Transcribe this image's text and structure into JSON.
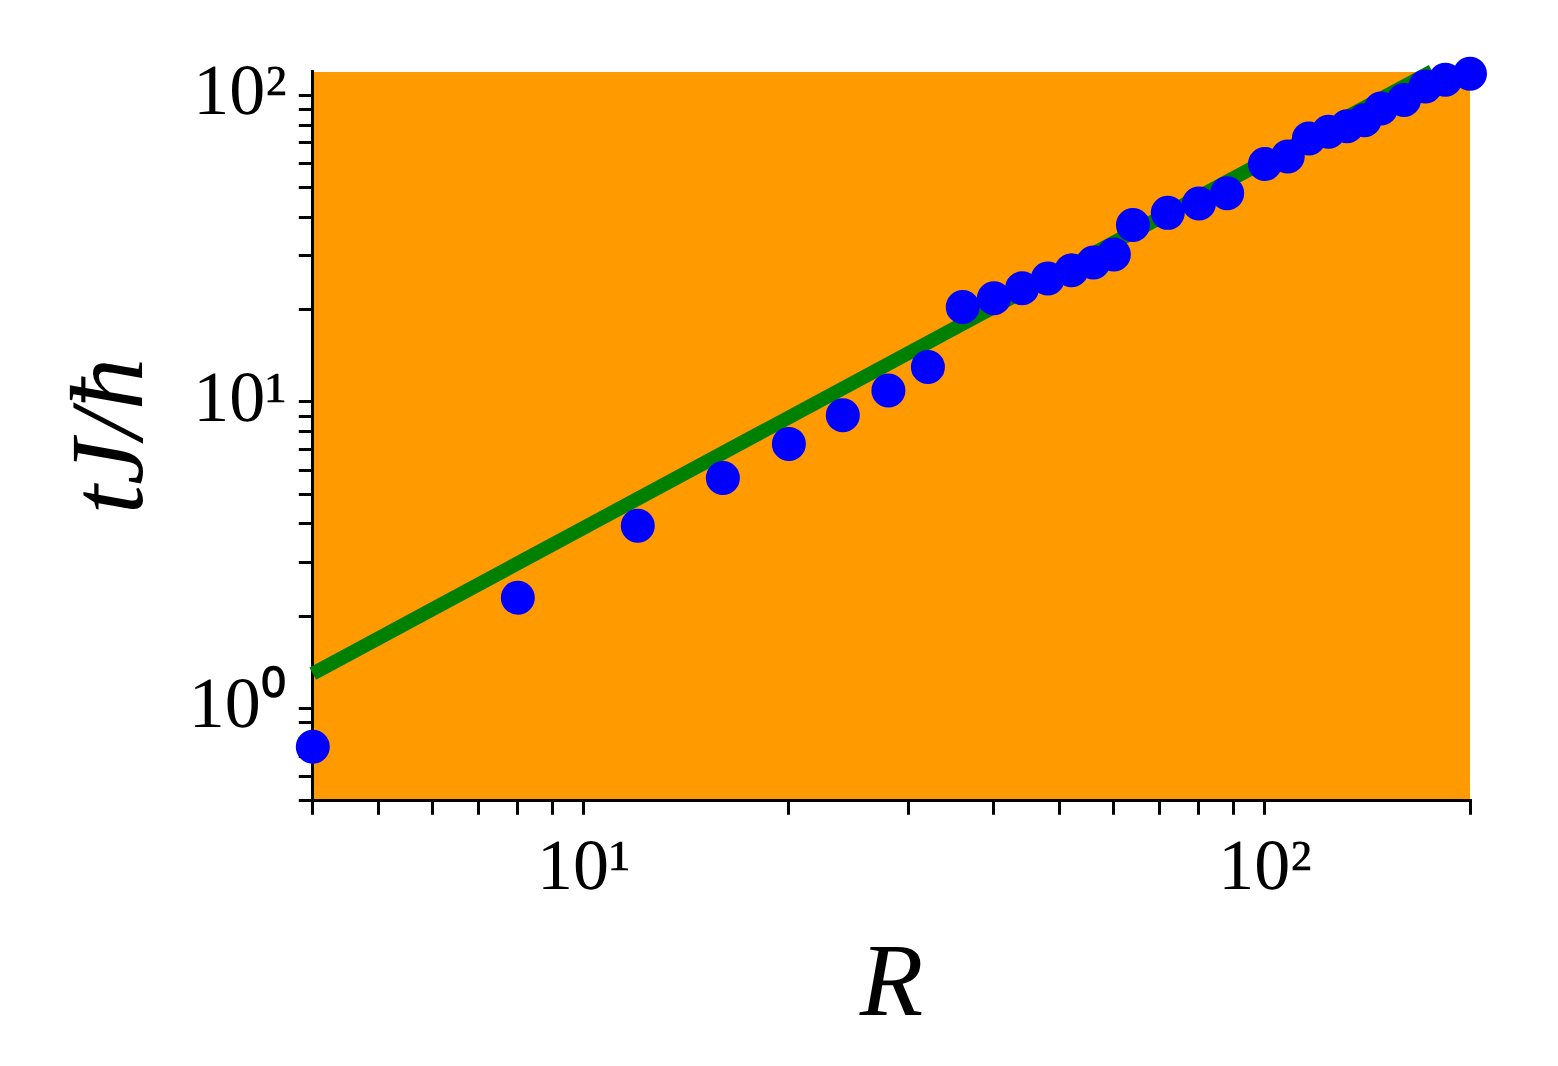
{
  "chart_data": {
    "type": "scatter",
    "xlabel": "R",
    "ylabel": "tJ/ħ",
    "log": "xy",
    "xlim": [
      4,
      200
    ],
    "ylim": [
      0.5,
      120
    ],
    "xticks": [
      {
        "value": 4,
        "label": null
      },
      {
        "value": 5,
        "label": null
      },
      {
        "value": 6,
        "label": null
      },
      {
        "value": 7,
        "label": null
      },
      {
        "value": 8,
        "label": null
      },
      {
        "value": 9,
        "label": null
      },
      {
        "value": 10,
        "label": "10¹"
      },
      {
        "value": 20,
        "label": null
      },
      {
        "value": 30,
        "label": null
      },
      {
        "value": 40,
        "label": null
      },
      {
        "value": 50,
        "label": null
      },
      {
        "value": 60,
        "label": null
      },
      {
        "value": 70,
        "label": null
      },
      {
        "value": 80,
        "label": null
      },
      {
        "value": 90,
        "label": null
      },
      {
        "value": 100,
        "label": "10²"
      },
      {
        "value": 200,
        "label": null
      }
    ],
    "yticks": [
      {
        "value": 0.5,
        "label": null
      },
      {
        "value": 0.6,
        "label": null
      },
      {
        "value": 0.7,
        "label": null
      },
      {
        "value": 0.8,
        "label": null
      },
      {
        "value": 0.9,
        "label": null
      },
      {
        "value": 1,
        "label": "10⁰"
      },
      {
        "value": 2,
        "label": null
      },
      {
        "value": 3,
        "label": null
      },
      {
        "value": 4,
        "label": null
      },
      {
        "value": 5,
        "label": null
      },
      {
        "value": 6,
        "label": null
      },
      {
        "value": 7,
        "label": null
      },
      {
        "value": 8,
        "label": null
      },
      {
        "value": 9,
        "label": null
      },
      {
        "value": 10,
        "label": "10¹"
      },
      {
        "value": 20,
        "label": null
      },
      {
        "value": 30,
        "label": null
      },
      {
        "value": 40,
        "label": null
      },
      {
        "value": 50,
        "label": null
      },
      {
        "value": 60,
        "label": null
      },
      {
        "value": 70,
        "label": null
      },
      {
        "value": 80,
        "label": null
      },
      {
        "value": 90,
        "label": null
      },
      {
        "value": 100,
        "label": "10²"
      }
    ],
    "series": [
      {
        "color": "#0000ff",
        "marker": "circle",
        "x": [
          4,
          8,
          12,
          16,
          20,
          24,
          28,
          32,
          36,
          40,
          44,
          48,
          52,
          56,
          60,
          64,
          72,
          80,
          88,
          100,
          108,
          116,
          124,
          132,
          140,
          148,
          160,
          172,
          184,
          200
        ],
        "values": [
          0.75,
          2.3,
          3.95,
          5.65,
          7.3,
          9.05,
          10.9,
          13,
          20.4,
          21.8,
          23.5,
          25.3,
          26.9,
          28.5,
          30.3,
          37.8,
          41.4,
          44.4,
          48,
          59.8,
          63.2,
          72.4,
          76.2,
          79.4,
          83,
          90.7,
          96.6,
          107,
          112.5,
          117.8
        ]
      },
      {
        "type": "line",
        "color": "#008000",
        "x": [
          4,
          176
        ],
        "values": [
          1.3,
          120
        ]
      }
    ]
  }
}
